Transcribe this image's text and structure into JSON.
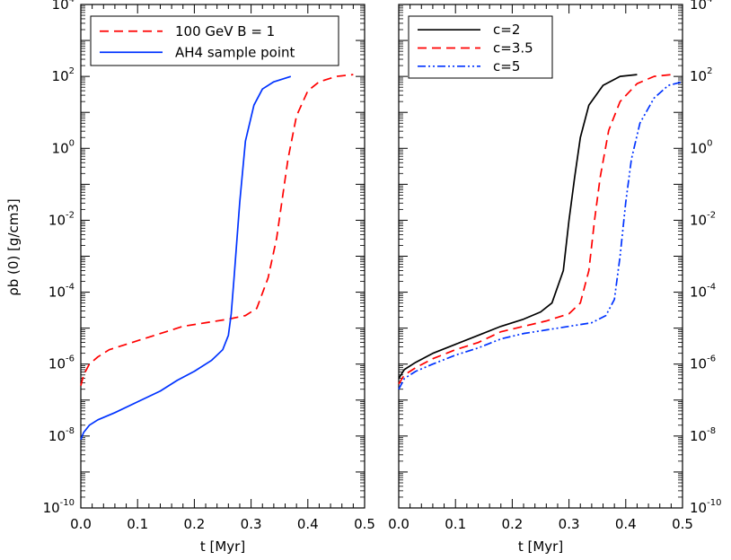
{
  "chart_data": [
    {
      "type": "line",
      "xlabel": "t [Myr]",
      "ylabel": "ρb (0) [g/cm3]",
      "xlim": [
        0,
        0.5
      ],
      "ylim_log10": [
        -10,
        4
      ],
      "x_ticks": [
        0.0,
        0.1,
        0.2,
        0.3,
        0.4,
        0.5
      ],
      "x_tick_labels": [
        "0.0",
        "0.1",
        "0.2",
        "0.3",
        "0.4",
        "0.5"
      ],
      "y_tick_exponents": [
        -10,
        -8,
        -6,
        -4,
        -2,
        0,
        2,
        4
      ],
      "y_tick_base": "10",
      "y_tick_exp_labels": [
        "-10",
        "-8",
        "-6",
        "-4",
        "-2",
        "0",
        "2",
        "4"
      ],
      "legend_position": "top-left",
      "series": [
        {
          "name": "100 GeV B = 1",
          "color": "#ff0000",
          "dash": "dashed",
          "points": [
            [
              0.0,
              -6.6
            ],
            [
              0.005,
              -6.3
            ],
            [
              0.015,
              -6.0
            ],
            [
              0.03,
              -5.8
            ],
            [
              0.05,
              -5.6
            ],
            [
              0.08,
              -5.45
            ],
            [
              0.12,
              -5.25
            ],
            [
              0.15,
              -5.1
            ],
            [
              0.18,
              -4.95
            ],
            [
              0.22,
              -4.85
            ],
            [
              0.26,
              -4.75
            ],
            [
              0.29,
              -4.65
            ],
            [
              0.31,
              -4.45
            ],
            [
              0.33,
              -3.6
            ],
            [
              0.345,
              -2.5
            ],
            [
              0.355,
              -1.4
            ],
            [
              0.365,
              -0.3
            ],
            [
              0.38,
              0.9
            ],
            [
              0.4,
              1.6
            ],
            [
              0.42,
              1.85
            ],
            [
              0.45,
              2.0
            ],
            [
              0.48,
              2.05
            ]
          ]
        },
        {
          "name": "AH4 sample point",
          "color": "#0033ff",
          "dash": "solid",
          "points": [
            [
              0.0,
              -8.1
            ],
            [
              0.005,
              -7.9
            ],
            [
              0.015,
              -7.7
            ],
            [
              0.03,
              -7.55
            ],
            [
              0.06,
              -7.35
            ],
            [
              0.1,
              -7.05
            ],
            [
              0.14,
              -6.75
            ],
            [
              0.17,
              -6.45
            ],
            [
              0.2,
              -6.2
            ],
            [
              0.23,
              -5.9
            ],
            [
              0.25,
              -5.6
            ],
            [
              0.26,
              -5.2
            ],
            [
              0.265,
              -4.6
            ],
            [
              0.27,
              -3.6
            ],
            [
              0.28,
              -1.5
            ],
            [
              0.29,
              0.2
            ],
            [
              0.305,
              1.2
            ],
            [
              0.32,
              1.65
            ],
            [
              0.34,
              1.85
            ],
            [
              0.37,
              2.0
            ]
          ]
        }
      ]
    },
    {
      "type": "line",
      "xlabel": "t [Myr]",
      "ylabel": "",
      "xlim": [
        0,
        0.5
      ],
      "ylim_log10": [
        -10,
        4
      ],
      "x_ticks": [
        0.0,
        0.1,
        0.2,
        0.3,
        0.4,
        0.5
      ],
      "x_tick_labels": [
        "0.0",
        "0.1",
        "0.2",
        "0.3",
        "0.4",
        "0.5"
      ],
      "y_tick_exponents": [
        -10,
        -8,
        -6,
        -4,
        -2,
        0,
        2,
        4
      ],
      "y_tick_base": "10",
      "y_tick_exp_labels": [
        "-10",
        "-8",
        "-6",
        "-4",
        "-2",
        "0",
        "2",
        "4"
      ],
      "legend_position": "top-left",
      "series": [
        {
          "name": "c=2",
          "color": "#000000",
          "dash": "solid",
          "points": [
            [
              0.0,
              -6.4
            ],
            [
              0.01,
              -6.15
            ],
            [
              0.03,
              -5.95
            ],
            [
              0.06,
              -5.7
            ],
            [
              0.1,
              -5.45
            ],
            [
              0.14,
              -5.2
            ],
            [
              0.18,
              -4.95
            ],
            [
              0.22,
              -4.75
            ],
            [
              0.25,
              -4.55
            ],
            [
              0.27,
              -4.3
            ],
            [
              0.29,
              -3.4
            ],
            [
              0.3,
              -2.0
            ],
            [
              0.31,
              -0.8
            ],
            [
              0.32,
              0.3
            ],
            [
              0.335,
              1.2
            ],
            [
              0.36,
              1.75
            ],
            [
              0.39,
              2.0
            ],
            [
              0.42,
              2.05
            ]
          ]
        },
        {
          "name": "c=3.5",
          "color": "#ff0000",
          "dash": "dashed",
          "points": [
            [
              0.0,
              -6.55
            ],
            [
              0.01,
              -6.3
            ],
            [
              0.03,
              -6.1
            ],
            [
              0.06,
              -5.85
            ],
            [
              0.1,
              -5.6
            ],
            [
              0.14,
              -5.4
            ],
            [
              0.18,
              -5.1
            ],
            [
              0.22,
              -4.95
            ],
            [
              0.26,
              -4.8
            ],
            [
              0.3,
              -4.6
            ],
            [
              0.32,
              -4.3
            ],
            [
              0.335,
              -3.4
            ],
            [
              0.345,
              -2.0
            ],
            [
              0.355,
              -0.8
            ],
            [
              0.37,
              0.5
            ],
            [
              0.39,
              1.3
            ],
            [
              0.42,
              1.8
            ],
            [
              0.45,
              2.0
            ],
            [
              0.48,
              2.05
            ]
          ]
        },
        {
          "name": "c=5",
          "color": "#0033ff",
          "dash": "dash-dot-dot",
          "points": [
            [
              0.0,
              -6.7
            ],
            [
              0.01,
              -6.4
            ],
            [
              0.03,
              -6.2
            ],
            [
              0.06,
              -6.0
            ],
            [
              0.1,
              -5.75
            ],
            [
              0.14,
              -5.55
            ],
            [
              0.18,
              -5.3
            ],
            [
              0.22,
              -5.15
            ],
            [
              0.26,
              -5.05
            ],
            [
              0.3,
              -4.95
            ],
            [
              0.34,
              -4.85
            ],
            [
              0.365,
              -4.65
            ],
            [
              0.38,
              -4.2
            ],
            [
              0.39,
              -3.0
            ],
            [
              0.4,
              -1.5
            ],
            [
              0.41,
              -0.3
            ],
            [
              0.425,
              0.7
            ],
            [
              0.45,
              1.4
            ],
            [
              0.475,
              1.75
            ],
            [
              0.5,
              1.85
            ]
          ]
        }
      ]
    }
  ]
}
